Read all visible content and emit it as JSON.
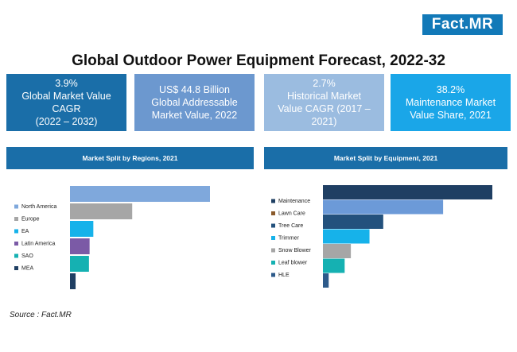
{
  "brand": {
    "logo_text": "Fact",
    "logo_suffix": ".MR"
  },
  "title": "Global Outdoor Power Equipment Forecast, 2022-32",
  "stats": [
    {
      "lines": [
        "3.9%",
        "Global Market Value",
        "CAGR",
        "(2022 – 2032)"
      ],
      "color": "#1a6ea8"
    },
    {
      "lines": [
        "US$ 44.8 Billion",
        "Global Addressable",
        "Market Value, 2022"
      ],
      "color": "#6c98cf"
    },
    {
      "lines": [
        "2.7%",
        "Historical Market",
        "Value CAGR (2017 –",
        "2021)"
      ],
      "color": "#9bbce0"
    },
    {
      "lines": [
        "38.2%",
        "Maintenance Market",
        "Value Share, 2021"
      ],
      "color": "#1aa6e8"
    }
  ],
  "source": "Source : Fact.MR",
  "chart_data": [
    {
      "type": "bar",
      "orientation": "horizontal",
      "title": "Market Split by Regions, 2021",
      "categories": [
        "North America",
        "Europe",
        "EA",
        "Latin America",
        "SAO",
        "MEA"
      ],
      "values": [
        45,
        20,
        7.5,
        6.3,
        6.1,
        1.8
      ],
      "colors": [
        "#7fa8dc",
        "#a6a6a6",
        "#16b2ea",
        "#7b5aa6",
        "#15b1b2",
        "#1f3f63"
      ],
      "legend_position": "left"
    },
    {
      "type": "bar",
      "orientation": "horizontal",
      "title": "Market Split by Equipment, 2021",
      "categories": [
        "Maintenance",
        "Lawn Care",
        "Tree Care",
        "Trimmer",
        "Snow Blower",
        "Leaf blower",
        "HLE"
      ],
      "values": [
        38.2,
        27.1,
        13.6,
        10.5,
        6.3,
        4.9,
        1.3
      ],
      "colors": [
        "#1f3f63",
        "#6c9ad8",
        "#23517d",
        "#16b2ea",
        "#a6a6a6",
        "#15b1b2",
        "#2d5a8a"
      ],
      "legend_colors": [
        "#1f3f63",
        "#8a5a2b",
        "#23517d",
        "#16b2ea",
        "#a6a6a6",
        "#15b1b2",
        "#2d5a8a"
      ],
      "legend_position": "left"
    }
  ]
}
